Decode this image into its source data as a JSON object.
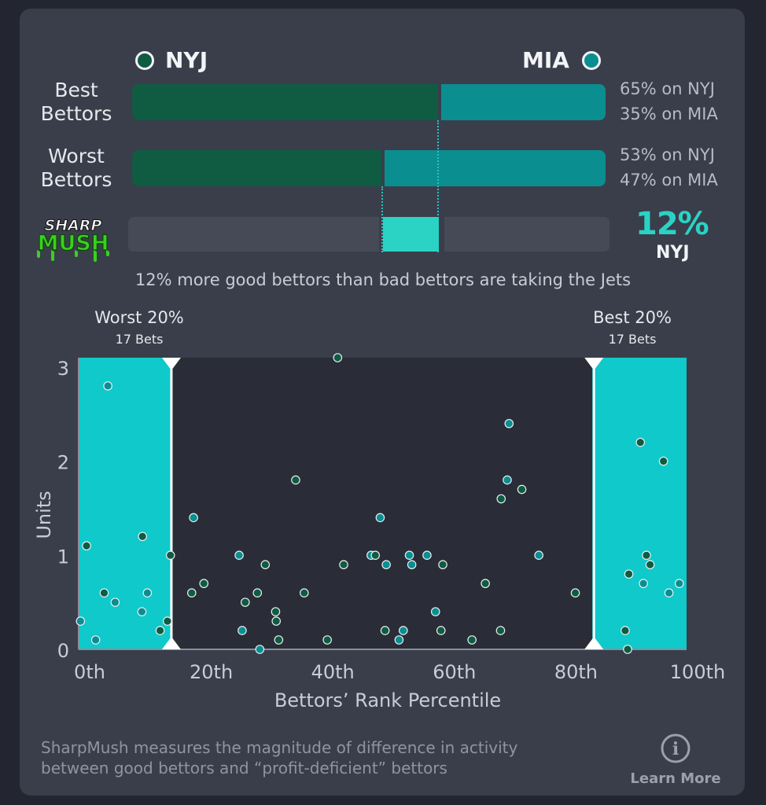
{
  "teams": {
    "left": {
      "abbr": "NYJ",
      "color": "#0f5c42"
    },
    "right": {
      "abbr": "MIA",
      "color": "#0a8e90"
    }
  },
  "rows": [
    {
      "label_line1": "Best",
      "label_line2": "Bettors",
      "left_pct": 65,
      "right_pct": 35,
      "left_text": "65% on NYJ",
      "right_text": "35% on MIA"
    },
    {
      "label_line1": "Worst",
      "label_line2": "Bettors",
      "left_pct": 53,
      "right_pct": 47,
      "left_text": "53% on NYJ",
      "right_text": "47% on MIA"
    }
  ],
  "sharpmush": {
    "logo_line1": "SHARP",
    "logo_line2": "MUSH",
    "value_text": "12%",
    "team": "NYJ",
    "value": 12,
    "summary": "12% more good bettors than bad bettors are taking the Jets"
  },
  "zones": {
    "worst": {
      "title": "Worst 20%",
      "sub": "17 Bets"
    },
    "best": {
      "title": "Best 20%",
      "sub": "17 Bets"
    }
  },
  "colors": {
    "accent": "#2ad3c4",
    "zone_fill": "#10c9ca",
    "bg_card": "#3a3e4b",
    "plot_bg": "#2a2d37"
  },
  "chart_data": {
    "type": "scatter",
    "xlabel": "Bettors’ Rank Percentile",
    "ylabel": "Units",
    "xlim": [
      0,
      100
    ],
    "ylim": [
      0,
      3.1
    ],
    "x_ticks": [
      "0th",
      "20th",
      "40th",
      "60th",
      "80th",
      "100th"
    ],
    "x_tick_values": [
      0,
      20,
      40,
      60,
      80,
      100
    ],
    "y_ticks": [
      "0",
      "1",
      "2",
      "3"
    ],
    "y_tick_values": [
      0,
      1,
      2,
      3
    ],
    "worst_zone": [
      0,
      15
    ],
    "best_zone": [
      84.5,
      100
    ],
    "points": [
      {
        "x": 0.3,
        "y": 0.3,
        "team": "MIA"
      },
      {
        "x": 1.3,
        "y": 1.1,
        "team": "NYJ"
      },
      {
        "x": 2.8,
        "y": 0.1,
        "team": "MIA"
      },
      {
        "x": 4.2,
        "y": 0.6,
        "team": "NYJ"
      },
      {
        "x": 4.8,
        "y": 2.8,
        "team": "MIA"
      },
      {
        "x": 6.0,
        "y": 0.5,
        "team": "MIA"
      },
      {
        "x": 10.4,
        "y": 0.4,
        "team": "MIA"
      },
      {
        "x": 10.5,
        "y": 1.2,
        "team": "NYJ"
      },
      {
        "x": 11.3,
        "y": 0.6,
        "team": "MIA"
      },
      {
        "x": 13.4,
        "y": 0.2,
        "team": "NYJ"
      },
      {
        "x": 14.6,
        "y": 0.3,
        "team": "NYJ"
      },
      {
        "x": 15.1,
        "y": 1.0,
        "team": "NYJ"
      },
      {
        "x": 18.6,
        "y": 0.6,
        "team": "NYJ"
      },
      {
        "x": 18.9,
        "y": 1.4,
        "team": "MIA"
      },
      {
        "x": 20.6,
        "y": 0.7,
        "team": "NYJ"
      },
      {
        "x": 26.4,
        "y": 1.0,
        "team": "MIA"
      },
      {
        "x": 26.9,
        "y": 0.2,
        "team": "MIA"
      },
      {
        "x": 27.4,
        "y": 0.5,
        "team": "NYJ"
      },
      {
        "x": 29.4,
        "y": 0.6,
        "team": "NYJ"
      },
      {
        "x": 29.8,
        "y": 0.0,
        "team": "MIA"
      },
      {
        "x": 30.7,
        "y": 0.9,
        "team": "NYJ"
      },
      {
        "x": 32.4,
        "y": 0.4,
        "team": "NYJ"
      },
      {
        "x": 32.5,
        "y": 0.3,
        "team": "NYJ"
      },
      {
        "x": 32.9,
        "y": 0.1,
        "team": "NYJ"
      },
      {
        "x": 35.7,
        "y": 1.8,
        "team": "NYJ"
      },
      {
        "x": 37.1,
        "y": 0.6,
        "team": "NYJ"
      },
      {
        "x": 40.9,
        "y": 0.1,
        "team": "NYJ"
      },
      {
        "x": 42.6,
        "y": 3.1,
        "team": "NYJ"
      },
      {
        "x": 43.6,
        "y": 0.9,
        "team": "NYJ"
      },
      {
        "x": 48.1,
        "y": 1.0,
        "team": "MIA"
      },
      {
        "x": 48.8,
        "y": 1.0,
        "team": "NYJ"
      },
      {
        "x": 49.6,
        "y": 1.4,
        "team": "MIA"
      },
      {
        "x": 50.4,
        "y": 0.2,
        "team": "NYJ"
      },
      {
        "x": 50.6,
        "y": 0.9,
        "team": "MIA"
      },
      {
        "x": 52.7,
        "y": 0.1,
        "team": "MIA"
      },
      {
        "x": 53.4,
        "y": 0.2,
        "team": "MIA"
      },
      {
        "x": 54.4,
        "y": 1.0,
        "team": "MIA"
      },
      {
        "x": 54.8,
        "y": 0.9,
        "team": "MIA"
      },
      {
        "x": 57.3,
        "y": 1.0,
        "team": "MIA"
      },
      {
        "x": 58.7,
        "y": 0.4,
        "team": "MIA"
      },
      {
        "x": 59.6,
        "y": 0.2,
        "team": "NYJ"
      },
      {
        "x": 59.9,
        "y": 0.9,
        "team": "NYJ"
      },
      {
        "x": 64.7,
        "y": 0.1,
        "team": "NYJ"
      },
      {
        "x": 66.9,
        "y": 0.7,
        "team": "NYJ"
      },
      {
        "x": 69.4,
        "y": 0.2,
        "team": "NYJ"
      },
      {
        "x": 69.5,
        "y": 1.6,
        "team": "NYJ"
      },
      {
        "x": 70.5,
        "y": 1.8,
        "team": "MIA"
      },
      {
        "x": 70.8,
        "y": 2.4,
        "team": "MIA"
      },
      {
        "x": 72.9,
        "y": 1.7,
        "team": "NYJ"
      },
      {
        "x": 75.7,
        "y": 1.0,
        "team": "MIA"
      },
      {
        "x": 81.7,
        "y": 0.6,
        "team": "NYJ"
      },
      {
        "x": 89.9,
        "y": 0.2,
        "team": "NYJ"
      },
      {
        "x": 90.3,
        "y": 0.0,
        "team": "NYJ"
      },
      {
        "x": 90.5,
        "y": 0.8,
        "team": "NYJ"
      },
      {
        "x": 92.4,
        "y": 2.2,
        "team": "NYJ"
      },
      {
        "x": 92.9,
        "y": 0.7,
        "team": "MIA"
      },
      {
        "x": 93.4,
        "y": 1.0,
        "team": "NYJ"
      },
      {
        "x": 94.0,
        "y": 0.9,
        "team": "NYJ"
      },
      {
        "x": 96.2,
        "y": 2.0,
        "team": "NYJ"
      },
      {
        "x": 97.1,
        "y": 0.6,
        "team": "MIA"
      },
      {
        "x": 98.8,
        "y": 0.7,
        "team": "MIA"
      }
    ]
  },
  "footer": {
    "line1": "SharpMush measures the magnitude of difference in activity",
    "line2": "between good bettors and “profit-deficient” bettors",
    "learn_more": "Learn More",
    "info_icon": "i"
  }
}
